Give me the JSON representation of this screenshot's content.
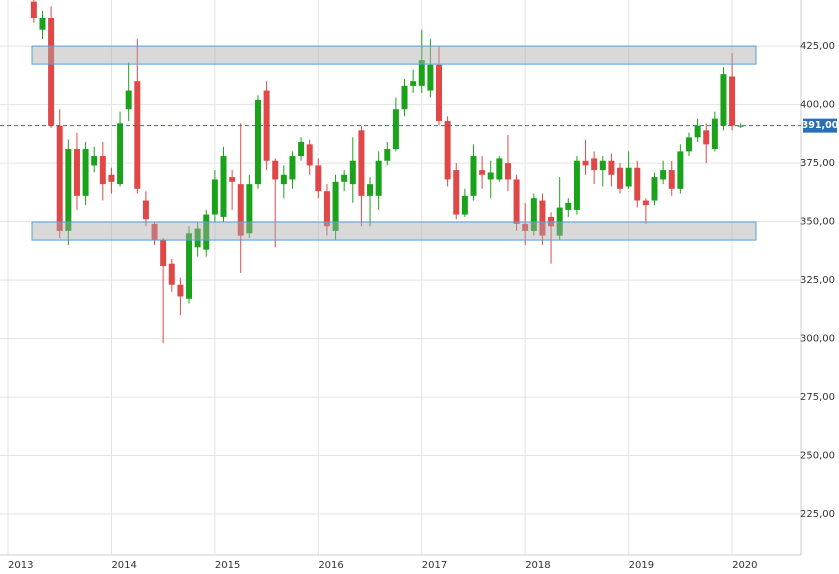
{
  "chart_data": {
    "type": "candlestick",
    "categories": [
      null,
      null,
      null,
      null,
      null,
      null,
      null,
      null,
      null,
      null,
      null,
      null,
      "2014",
      null,
      null,
      null,
      null,
      null,
      null,
      null,
      null,
      null,
      null,
      null,
      "2015",
      null,
      null,
      null,
      null,
      null,
      null,
      null,
      null,
      null,
      null,
      null,
      "2016",
      null,
      null,
      null,
      null,
      null,
      null,
      null,
      null,
      null,
      null,
      null,
      "2017",
      null,
      null,
      null,
      null,
      null,
      null,
      null,
      null,
      null,
      null,
      null,
      "2018",
      null,
      null,
      null,
      null,
      null,
      null,
      null,
      null,
      null,
      null,
      null,
      "2019",
      null,
      null,
      null,
      null,
      null,
      null,
      null,
      null,
      null,
      null,
      null,
      "2020",
      null
    ],
    "start_label": "2013",
    "open": [
      null,
      null,
      null,
      444,
      432,
      437,
      391,
      346,
      381,
      361,
      374,
      378,
      370,
      366,
      398,
      410,
      359,
      349,
      342,
      332,
      323,
      317,
      339,
      338,
      353,
      352,
      369,
      366,
      345,
      366,
      406,
      376,
      366,
      368,
      378,
      383,
      374,
      363,
      346,
      367,
      366,
      389,
      361,
      361,
      376,
      381,
      398,
      408,
      408,
      406,
      417,
      393,
      372,
      353,
      361,
      372,
      368,
      368,
      375,
      368,
      349,
      346,
      359,
      352,
      344,
      355,
      355,
      376,
      377,
      372,
      376,
      373,
      365,
      373,
      359,
      359,
      368,
      372,
      364,
      380,
      386,
      389,
      381,
      391,
      412,
      391
    ],
    "high": [
      null,
      null,
      null,
      446,
      440,
      442,
      398,
      385,
      388,
      384,
      382,
      384,
      373,
      397,
      418,
      428,
      363,
      350,
      343,
      334,
      326,
      348,
      350,
      355,
      372,
      382,
      372,
      392,
      370,
      404,
      410,
      377,
      374,
      380,
      386,
      385,
      377,
      366,
      370,
      372,
      386,
      391,
      369,
      380,
      384,
      403,
      411,
      415,
      432,
      428,
      425,
      395,
      375,
      364,
      383,
      378,
      376,
      378,
      387,
      370,
      358,
      362,
      362,
      354,
      369,
      360,
      378,
      385,
      380,
      378,
      379,
      375,
      380,
      376,
      360,
      371,
      376,
      376,
      383,
      388,
      394,
      392,
      397,
      416,
      422,
      392
    ],
    "low": [
      null,
      null,
      null,
      435,
      428,
      390,
      343,
      340,
      355,
      357,
      371,
      359,
      362,
      365,
      393,
      362,
      348,
      340,
      298,
      320,
      310,
      315,
      335,
      335,
      350,
      350,
      355,
      328,
      343,
      364,
      372,
      339,
      360,
      364,
      376,
      370,
      360,
      344,
      342,
      363,
      358,
      348,
      348,
      355,
      374,
      380,
      395,
      405,
      405,
      403,
      391,
      365,
      351,
      352,
      359,
      364,
      360,
      367,
      363,
      346,
      340,
      344,
      340,
      332,
      342,
      352,
      353,
      370,
      366,
      365,
      365,
      362,
      364,
      356,
      349,
      357,
      366,
      361,
      362,
      378,
      384,
      375,
      380,
      389,
      389,
      390
    ],
    "close": [
      null,
      null,
      null,
      437,
      437,
      391,
      346,
      381,
      361,
      381,
      378,
      366,
      367,
      392,
      406,
      364,
      351,
      342,
      331,
      323,
      318,
      345,
      347,
      353,
      368,
      378,
      367,
      344,
      366,
      402,
      376,
      368,
      370,
      378,
      384,
      374,
      363,
      348,
      367,
      370,
      376,
      361,
      366,
      376,
      381,
      398,
      408,
      410,
      419,
      417,
      393,
      368,
      353,
      361,
      378,
      370,
      371,
      377,
      368,
      349,
      346,
      360,
      344,
      348,
      356,
      358,
      376,
      374,
      372,
      376,
      370,
      364,
      373,
      359,
      357,
      369,
      372,
      364,
      380,
      386,
      391,
      383,
      394,
      413,
      391,
      391
    ],
    "up_color": "#1aa31a",
    "down_color": "#e04848",
    "ylim": [
      207.5,
      444.7
    ],
    "yticks": [
      {
        "value": 225,
        "label": "225,00"
      },
      {
        "value": 250,
        "label": "250,00"
      },
      {
        "value": 275,
        "label": "275,00"
      },
      {
        "value": 300,
        "label": "300,00"
      },
      {
        "value": 325,
        "label": "325,00"
      },
      {
        "value": 350,
        "label": "350,00"
      },
      {
        "value": 375,
        "label": "375,00"
      },
      {
        "value": 400,
        "label": "400,00"
      },
      {
        "value": 425,
        "label": "425,00"
      }
    ],
    "zones": [
      {
        "from": 417.3,
        "to": 425
      },
      {
        "from": 342.1,
        "to": 349.8
      }
    ],
    "last_price": {
      "value": 391,
      "label": "391,00"
    },
    "grid": true
  }
}
